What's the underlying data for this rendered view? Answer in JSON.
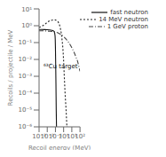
{
  "chart_data": {
    "type": "line",
    "x_label": "Recoil energy (MeV)",
    "y_label": "Recoils / projectile / MeV",
    "log": true,
    "legend": "upper right",
    "grid": false,
    "xlim": [
      0.001,
      100
    ],
    "ylim": [
      1e-06,
      10
    ],
    "xticks": [
      {
        "value": 0.001,
        "label": "10⁻³"
      },
      {
        "value": 0.01,
        "label": "10⁻²"
      },
      {
        "value": 0.1,
        "label": "10⁻¹"
      },
      {
        "value": 1,
        "label": "10⁰"
      },
      {
        "value": 10,
        "label": "10¹"
      },
      {
        "value": 100,
        "label": "10²"
      }
    ],
    "yticks": [
      {
        "value": 1e-06,
        "label": "10⁻⁶"
      },
      {
        "value": 1e-05,
        "label": "10⁻⁵"
      },
      {
        "value": 0.0001,
        "label": "10⁻⁴"
      },
      {
        "value": 0.001,
        "label": "10⁻³"
      },
      {
        "value": 0.01,
        "label": "10⁻²"
      },
      {
        "value": 0.1,
        "label": "10⁻¹"
      },
      {
        "value": 1,
        "label": "10⁰"
      },
      {
        "value": 10,
        "label": "10¹"
      }
    ],
    "annotations": [
      {
        "text": "⁶³Cu target",
        "x": 0.0035,
        "y": 0.004
      }
    ],
    "series": [
      {
        "name": "fast neutron",
        "color": "#111111",
        "line_style": "solid",
        "x": [
          0.001,
          0.002,
          0.005,
          0.01,
          0.02,
          0.05,
          0.07,
          0.08,
          0.09,
          0.095,
          0.1,
          0.105,
          0.11,
          0.115,
          0.12,
          0.125,
          0.13,
          0.135,
          0.14
        ],
        "values": [
          0.6,
          0.6,
          0.59,
          0.58,
          0.56,
          0.52,
          0.45,
          0.38,
          0.25,
          0.15,
          0.05,
          0.01,
          0.002,
          0.0004,
          6e-05,
          1e-05,
          3e-06,
          1e-06,
          1e-06
        ]
      },
      {
        "name": "14 MeV neutron",
        "color": "#222222",
        "line_style": "dotted",
        "x": [
          0.001,
          0.002,
          0.005,
          0.01,
          0.02,
          0.05,
          0.1,
          0.2,
          0.3,
          0.4,
          0.5,
          0.6,
          0.7,
          0.8,
          0.9,
          1.0,
          1.2,
          1.5,
          2.0,
          2.5,
          3.0
        ],
        "values": [
          0.8,
          0.9,
          1.2,
          1.6,
          2.0,
          2.2,
          2.2,
          1.8,
          1.2,
          0.7,
          0.4,
          0.2,
          0.1,
          0.05,
          0.02,
          0.008,
          0.001,
          0.0001,
          1e-05,
          1e-06,
          1e-06
        ]
      },
      {
        "name": "1 GeV proton",
        "color": "#444444",
        "line_style": "dashdot",
        "x": [
          0.001,
          0.002,
          0.005,
          0.01,
          0.02,
          0.05,
          0.1,
          0.2,
          0.5,
          1.0,
          2.0,
          5.0,
          10.0,
          20.0,
          50.0,
          100.0
        ],
        "values": [
          0.5,
          0.5,
          0.49,
          0.48,
          0.47,
          0.45,
          0.42,
          0.38,
          0.3,
          0.23,
          0.16,
          0.09,
          0.05,
          0.025,
          0.008,
          0.002
        ]
      }
    ]
  }
}
